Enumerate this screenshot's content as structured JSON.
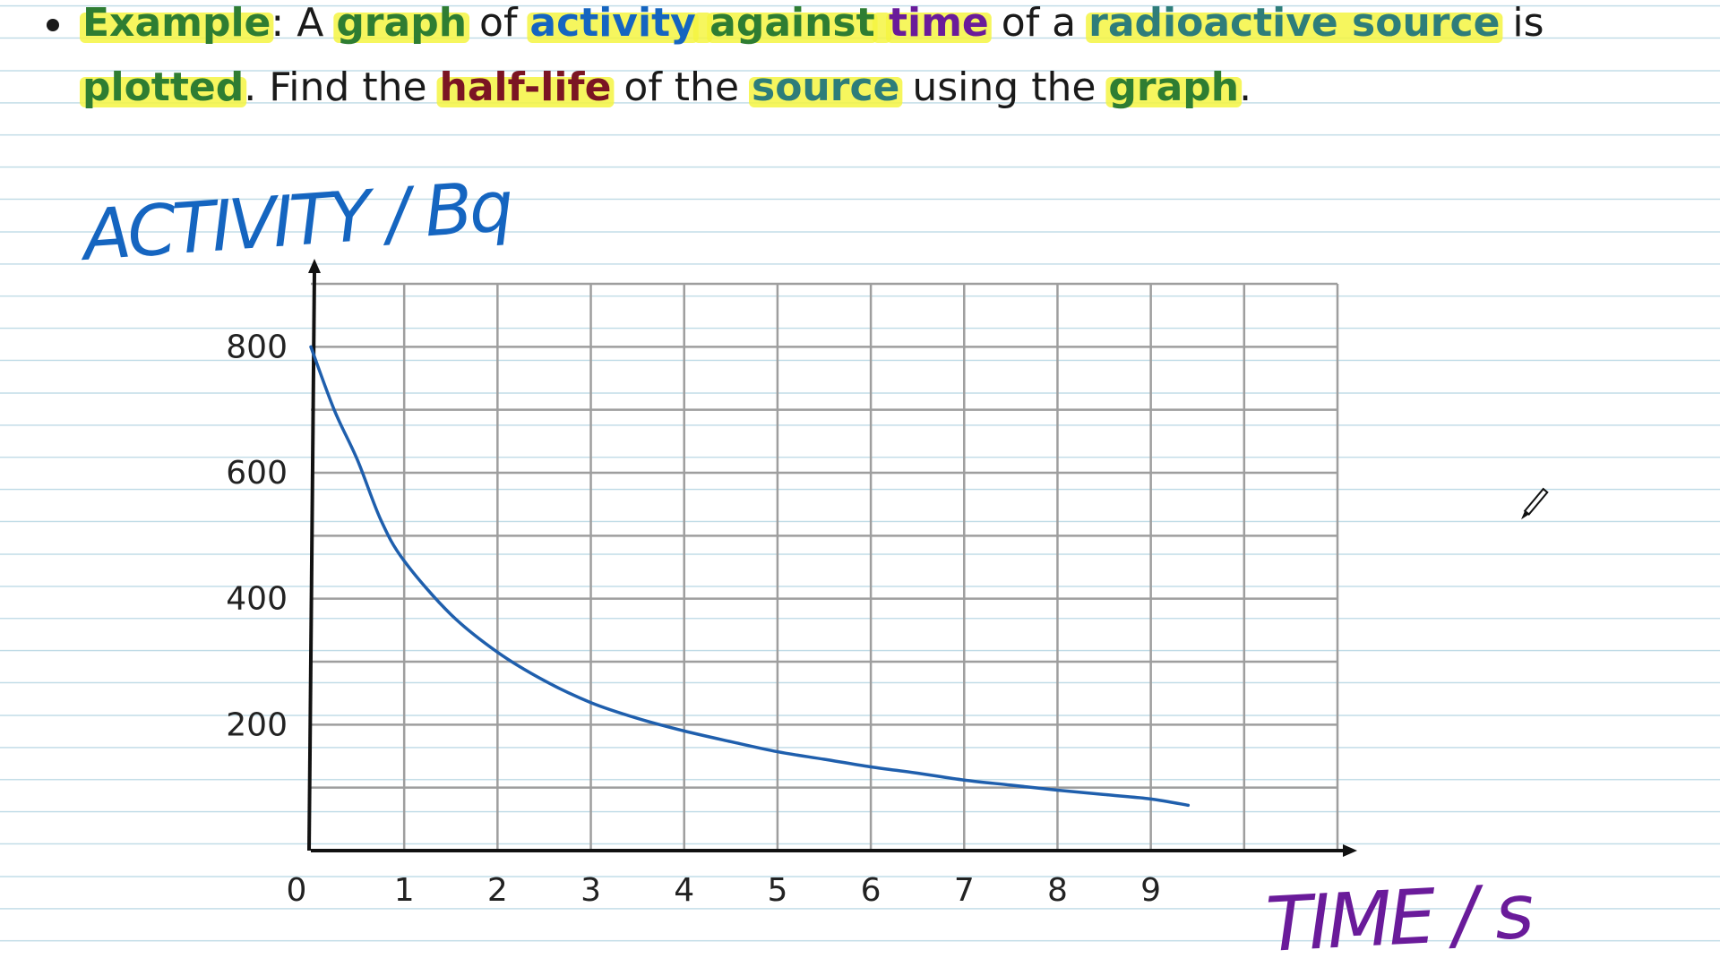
{
  "question": {
    "segments_line1": [
      {
        "text": "Example",
        "color": "#2e7d32",
        "bold": true,
        "highlight": true
      },
      {
        "text": ": A ",
        "color": "#1a1a1a",
        "bold": false,
        "highlight": false
      },
      {
        "text": "graph",
        "color": "#2e7d32",
        "bold": true,
        "highlight": true
      },
      {
        "text": " of ",
        "color": "#1a1a1a",
        "bold": false,
        "highlight": false
      },
      {
        "text": "activity",
        "color": "#1565c0",
        "bold": true,
        "highlight": true
      },
      {
        "text": " ",
        "color": "#1a1a1a",
        "bold": true,
        "highlight": true
      },
      {
        "text": "against",
        "color": "#2e7d32",
        "bold": true,
        "highlight": true
      },
      {
        "text": " ",
        "color": "#1a1a1a",
        "bold": true,
        "highlight": true
      },
      {
        "text": "time",
        "color": "#6a1b9a",
        "bold": true,
        "highlight": true
      },
      {
        "text": " of a ",
        "color": "#1a1a1a",
        "bold": false,
        "highlight": false
      },
      {
        "text": "radioactive source",
        "color": "#2e7d7a",
        "bold": true,
        "highlight": true
      },
      {
        "text": " is",
        "color": "#1a1a1a",
        "bold": false,
        "highlight": false
      }
    ],
    "segments_line2": [
      {
        "text": "plotted",
        "color": "#2e7d32",
        "bold": true,
        "highlight": true
      },
      {
        "text": ". Find the ",
        "color": "#1a1a1a",
        "bold": false,
        "highlight": false
      },
      {
        "text": "half-life",
        "color": "#7b1523",
        "bold": true,
        "highlight": true
      },
      {
        "text": " of the ",
        "color": "#1a1a1a",
        "bold": false,
        "highlight": false
      },
      {
        "text": "source",
        "color": "#2e7d7a",
        "bold": true,
        "highlight": true
      },
      {
        "text": " using the ",
        "color": "#1a1a1a",
        "bold": false,
        "highlight": false
      },
      {
        "text": "graph",
        "color": "#2e7d32",
        "bold": true,
        "highlight": true
      },
      {
        "text": ".",
        "color": "#1a1a1a",
        "bold": false,
        "highlight": false
      }
    ],
    "highlight_color": "#f5f542"
  },
  "handwriting": {
    "ylabel": "ACTIVITY / Bq",
    "xlabel": "TIME / s",
    "ylabel_color": "#1565c0",
    "xlabel_color": "#6a1b9a"
  },
  "chart_data": {
    "type": "line",
    "ylabel": "ACTIVITY / Bq",
    "xlabel": "TIME / s",
    "xlim": [
      0,
      11
    ],
    "ylim": [
      0,
      900
    ],
    "x_ticks": [
      "0",
      "1",
      "2",
      "3",
      "4",
      "5",
      "6",
      "7",
      "8",
      "9"
    ],
    "y_ticks": [
      "200",
      "400",
      "600",
      "800"
    ],
    "grid": true,
    "series": [
      {
        "color": "#1f5fad",
        "x": [
          0,
          0.25,
          0.5,
          0.75,
          1,
          1.5,
          2,
          2.5,
          3,
          3.5,
          4,
          4.5,
          5,
          5.5,
          6,
          6.5,
          7,
          7.5,
          8,
          8.5,
          9,
          9.4
        ],
        "y": [
          800,
          700,
          620,
          525,
          460,
          375,
          315,
          270,
          235,
          210,
          190,
          173,
          157,
          145,
          133,
          123,
          112,
          104,
          96,
          89,
          82,
          72
        ]
      }
    ]
  },
  "colors": {
    "axis": "#111111",
    "grid": "#9e9e9e",
    "curve": "#1f5fad"
  }
}
